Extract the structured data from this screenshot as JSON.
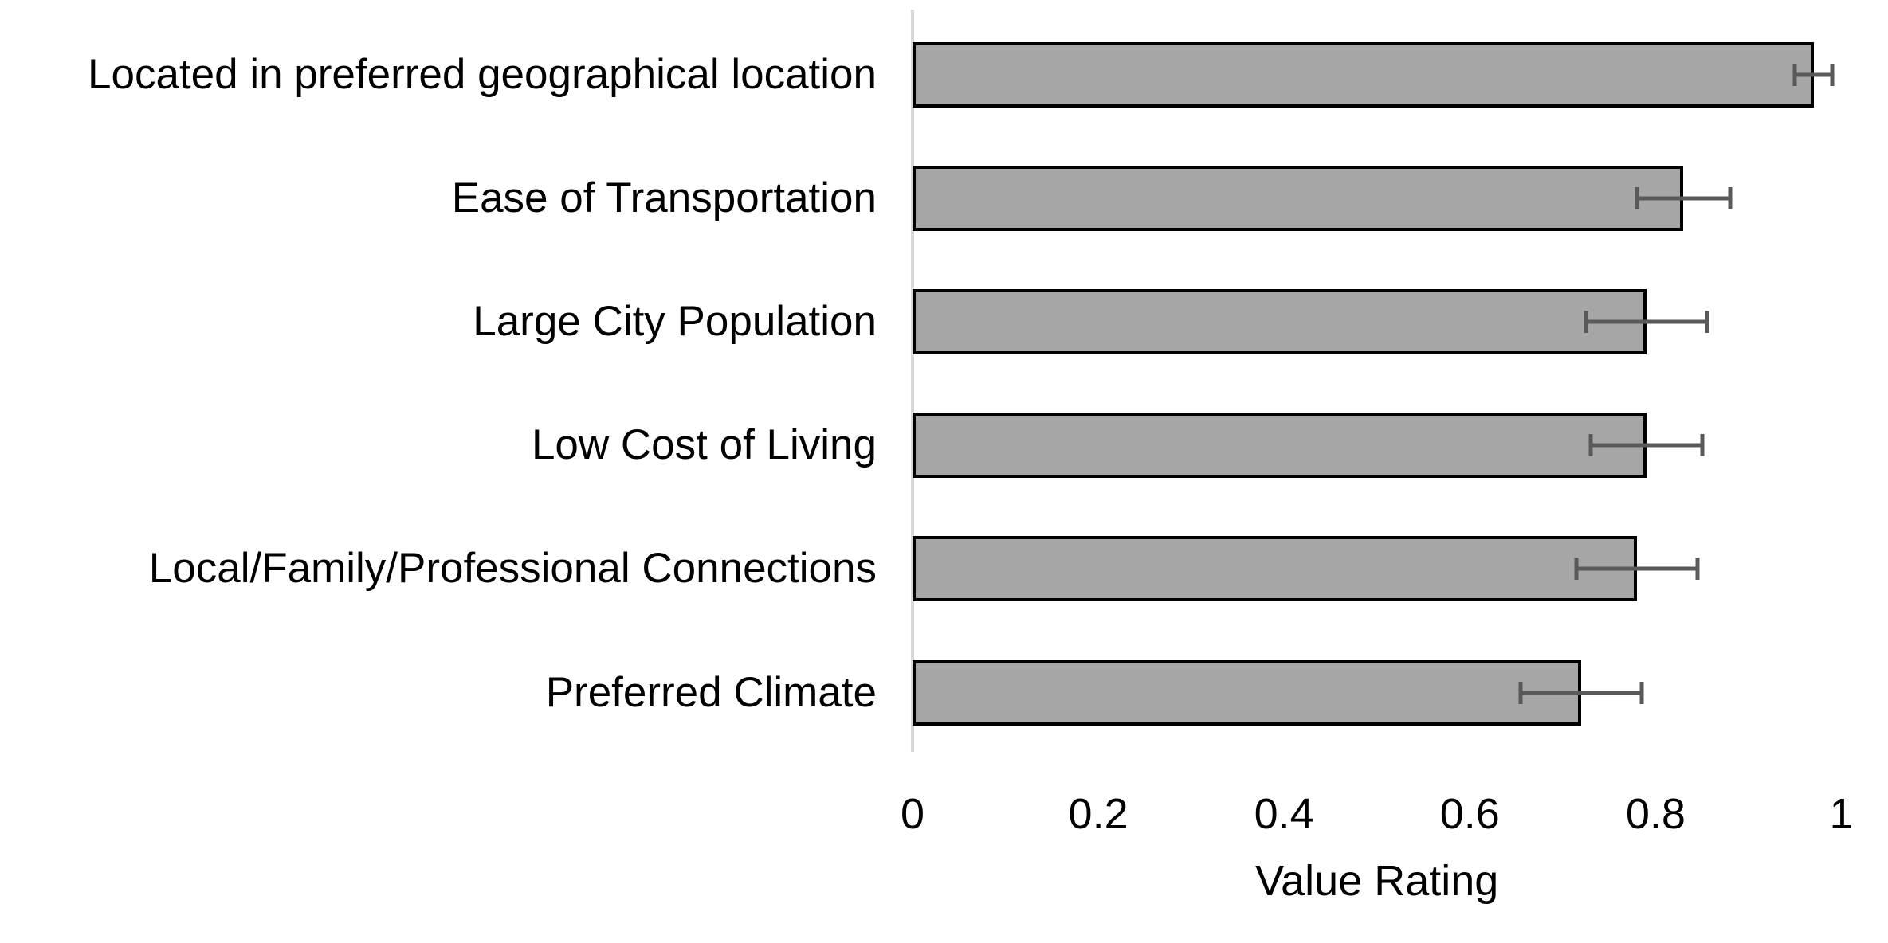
{
  "chart_data": {
    "type": "bar",
    "orientation": "horizontal",
    "title": "",
    "xlabel": "Value Rating",
    "ylabel": "",
    "categories": [
      "Located in preferred geographical location",
      "Ease of Transportation",
      "Large City Population",
      "Low Cost of Living",
      "Local/Family/Professional Connections",
      "Preferred Climate"
    ],
    "values": [
      0.97,
      0.83,
      0.79,
      0.79,
      0.78,
      0.72
    ],
    "errors": [
      0.02,
      0.05,
      0.065,
      0.06,
      0.065,
      0.065
    ],
    "xlim": [
      0,
      1
    ],
    "xticks": [
      0,
      0.2,
      0.4,
      0.6,
      0.8,
      1
    ],
    "xtick_labels": [
      "0",
      "0.2",
      "0.4",
      "0.6",
      "0.8",
      "1"
    ],
    "grid": false,
    "legend": null,
    "colors": {
      "bar_fill": "#A6A6A6",
      "bar_border": "#000000",
      "error_bar": "#595959",
      "axis_line": "#D9D9D9",
      "text": "#000000",
      "background": "#FFFFFF"
    }
  }
}
